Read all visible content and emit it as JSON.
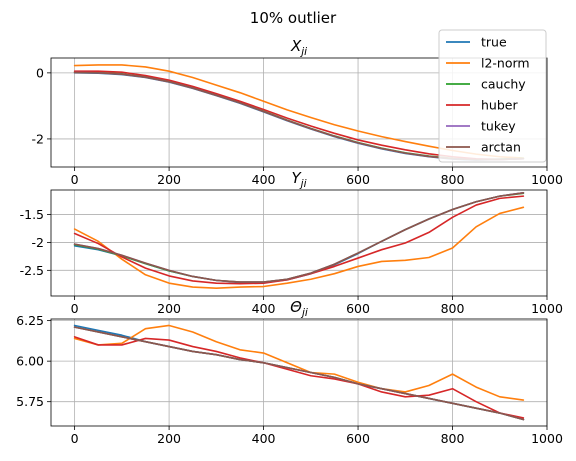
{
  "figure": {
    "suptitle": "10% outlier"
  },
  "legend": {
    "placement": "top-right",
    "entries": [
      {
        "name": "true",
        "color": "#1f77b4"
      },
      {
        "name": "l2-norm",
        "color": "#ff7f0e"
      },
      {
        "name": "cauchy",
        "color": "#2ca02c"
      },
      {
        "name": "huber",
        "color": "#d62728"
      },
      {
        "name": "tukey",
        "color": "#9467bd"
      },
      {
        "name": "arctan",
        "color": "#8c564b"
      }
    ]
  },
  "chart_data": [
    {
      "type": "line",
      "title": "X_ji",
      "title_base": "X",
      "title_sub": "ji",
      "xlim": [
        -50,
        1000
      ],
      "ylim": [
        -2.85,
        0.45
      ],
      "xticks": [
        0,
        200,
        400,
        600,
        800,
        1000
      ],
      "yticks": [
        0,
        -2
      ],
      "grid": true,
      "x": [
        0,
        50,
        100,
        150,
        200,
        250,
        300,
        350,
        400,
        450,
        500,
        550,
        600,
        650,
        700,
        750,
        800,
        850,
        900,
        950
      ],
      "series": [
        {
          "name": "true",
          "color": "#1f77b4",
          "values": [
            0.0,
            -0.01,
            -0.05,
            -0.14,
            -0.28,
            -0.47,
            -0.69,
            -0.92,
            -1.18,
            -1.45,
            -1.7,
            -1.93,
            -2.13,
            -2.3,
            -2.44,
            -2.54,
            -2.61,
            -2.64,
            -2.62,
            -2.6
          ]
        },
        {
          "name": "l2-norm",
          "color": "#ff7f0e",
          "values": [
            0.22,
            0.24,
            0.24,
            0.18,
            0.05,
            -0.14,
            -0.37,
            -0.6,
            -0.86,
            -1.12,
            -1.35,
            -1.57,
            -1.76,
            -1.93,
            -2.08,
            -2.22,
            -2.35,
            -2.46,
            -2.54,
            -2.58
          ]
        },
        {
          "name": "cauchy",
          "color": "#2ca02c",
          "values": [
            0.02,
            0.01,
            -0.03,
            -0.12,
            -0.26,
            -0.45,
            -0.67,
            -0.9,
            -1.16,
            -1.43,
            -1.68,
            -1.91,
            -2.11,
            -2.28,
            -2.42,
            -2.52,
            -2.59,
            -2.62,
            -2.61,
            -2.59
          ]
        },
        {
          "name": "huber",
          "color": "#d62728",
          "values": [
            0.05,
            0.05,
            0.02,
            -0.08,
            -0.22,
            -0.41,
            -0.63,
            -0.86,
            -1.11,
            -1.37,
            -1.61,
            -1.83,
            -2.03,
            -2.19,
            -2.33,
            -2.45,
            -2.54,
            -2.6,
            -2.62,
            -2.6
          ]
        },
        {
          "name": "tukey",
          "color": "#9467bd",
          "values": [
            0.01,
            0.0,
            -0.04,
            -0.13,
            -0.27,
            -0.46,
            -0.68,
            -0.91,
            -1.17,
            -1.44,
            -1.69,
            -1.92,
            -2.12,
            -2.29,
            -2.43,
            -2.53,
            -2.6,
            -2.63,
            -2.62,
            -2.6
          ]
        },
        {
          "name": "arctan",
          "color": "#8c564b",
          "values": [
            0.01,
            0.0,
            -0.04,
            -0.13,
            -0.27,
            -0.46,
            -0.68,
            -0.91,
            -1.17,
            -1.44,
            -1.69,
            -1.92,
            -2.12,
            -2.29,
            -2.43,
            -2.53,
            -2.6,
            -2.63,
            -2.62,
            -2.6
          ]
        }
      ]
    },
    {
      "type": "line",
      "title": "Y_ji",
      "title_base": "Y",
      "title_sub": "ji",
      "xlim": [
        -50,
        1000
      ],
      "ylim": [
        -2.96,
        -1.06
      ],
      "xticks": [
        0,
        200,
        400,
        600,
        800,
        1000
      ],
      "yticks": [
        -1.5,
        -2.0,
        -2.5
      ],
      "grid": true,
      "x": [
        0,
        50,
        100,
        150,
        200,
        250,
        300,
        350,
        400,
        450,
        500,
        550,
        600,
        650,
        700,
        750,
        800,
        850,
        900,
        950
      ],
      "series": [
        {
          "name": "true",
          "color": "#1f77b4",
          "values": [
            -2.06,
            -2.13,
            -2.24,
            -2.38,
            -2.51,
            -2.61,
            -2.68,
            -2.72,
            -2.72,
            -2.67,
            -2.56,
            -2.4,
            -2.2,
            -1.98,
            -1.77,
            -1.58,
            -1.41,
            -1.27,
            -1.17,
            -1.11
          ]
        },
        {
          "name": "l2-norm",
          "color": "#ff7f0e",
          "values": [
            -1.76,
            -1.98,
            -2.3,
            -2.58,
            -2.73,
            -2.8,
            -2.82,
            -2.8,
            -2.79,
            -2.73,
            -2.66,
            -2.56,
            -2.43,
            -2.34,
            -2.32,
            -2.27,
            -2.1,
            -1.72,
            -1.48,
            -1.37
          ]
        },
        {
          "name": "cauchy",
          "color": "#2ca02c",
          "values": [
            -2.04,
            -2.12,
            -2.24,
            -2.38,
            -2.51,
            -2.61,
            -2.68,
            -2.71,
            -2.71,
            -2.66,
            -2.55,
            -2.39,
            -2.19,
            -1.98,
            -1.77,
            -1.58,
            -1.41,
            -1.27,
            -1.17,
            -1.12
          ]
        },
        {
          "name": "huber",
          "color": "#d62728",
          "values": [
            -1.84,
            -2.02,
            -2.26,
            -2.46,
            -2.6,
            -2.69,
            -2.73,
            -2.74,
            -2.73,
            -2.67,
            -2.56,
            -2.43,
            -2.28,
            -2.13,
            -2.01,
            -1.82,
            -1.55,
            -1.33,
            -1.21,
            -1.17
          ]
        },
        {
          "name": "tukey",
          "color": "#9467bd",
          "values": [
            -2.03,
            -2.11,
            -2.23,
            -2.37,
            -2.5,
            -2.61,
            -2.68,
            -2.71,
            -2.71,
            -2.66,
            -2.55,
            -2.39,
            -2.19,
            -1.98,
            -1.77,
            -1.58,
            -1.41,
            -1.27,
            -1.17,
            -1.11
          ]
        },
        {
          "name": "arctan",
          "color": "#8c564b",
          "values": [
            -2.03,
            -2.11,
            -2.23,
            -2.37,
            -2.5,
            -2.61,
            -2.68,
            -2.71,
            -2.71,
            -2.66,
            -2.55,
            -2.39,
            -2.19,
            -1.98,
            -1.77,
            -1.58,
            -1.41,
            -1.27,
            -1.17,
            -1.11
          ]
        }
      ]
    },
    {
      "type": "line",
      "title": "Θ_ji",
      "title_base": "Θ",
      "title_sub": "ji",
      "xlim": [
        -50,
        1000
      ],
      "ylim": [
        5.6,
        6.26
      ],
      "xticks": [
        0,
        200,
        400,
        600,
        800,
        1000
      ],
      "yticks": [
        6.25,
        6.0,
        5.75
      ],
      "ytick_labels": [
        "6.25",
        "6.00",
        "5.75"
      ],
      "grid": true,
      "x": [
        0,
        50,
        100,
        150,
        200,
        250,
        300,
        350,
        400,
        450,
        500,
        550,
        600,
        650,
        700,
        750,
        800,
        850,
        900,
        950
      ],
      "series": [
        {
          "name": "true",
          "color": "#1f77b4",
          "values": [
            6.22,
            6.19,
            6.16,
            6.12,
            6.09,
            6.06,
            6.04,
            6.01,
            5.99,
            5.96,
            5.93,
            5.9,
            5.86,
            5.83,
            5.8,
            5.77,
            5.74,
            5.71,
            5.68,
            5.64
          ]
        },
        {
          "name": "l2-norm",
          "color": "#ff7f0e",
          "values": [
            6.14,
            6.1,
            6.11,
            6.2,
            6.22,
            6.18,
            6.12,
            6.07,
            6.05,
            5.99,
            5.93,
            5.92,
            5.87,
            5.83,
            5.81,
            5.85,
            5.92,
            5.84,
            5.78,
            5.76
          ]
        },
        {
          "name": "cauchy",
          "color": "#2ca02c",
          "values": [
            6.21,
            6.18,
            6.15,
            6.12,
            6.09,
            6.06,
            6.04,
            6.01,
            5.99,
            5.96,
            5.93,
            5.9,
            5.86,
            5.83,
            5.8,
            5.77,
            5.74,
            5.71,
            5.68,
            5.64
          ]
        },
        {
          "name": "huber",
          "color": "#d62728",
          "values": [
            6.15,
            6.1,
            6.1,
            6.14,
            6.13,
            6.09,
            6.06,
            6.02,
            5.99,
            5.95,
            5.91,
            5.89,
            5.86,
            5.81,
            5.78,
            5.79,
            5.83,
            5.75,
            5.68,
            5.65
          ]
        },
        {
          "name": "tukey",
          "color": "#9467bd",
          "values": [
            6.21,
            6.18,
            6.15,
            6.12,
            6.09,
            6.06,
            6.04,
            6.01,
            5.99,
            5.96,
            5.93,
            5.9,
            5.86,
            5.83,
            5.8,
            5.77,
            5.74,
            5.71,
            5.68,
            5.64
          ]
        },
        {
          "name": "arctan",
          "color": "#8c564b",
          "values": [
            6.21,
            6.18,
            6.15,
            6.12,
            6.09,
            6.06,
            6.04,
            6.01,
            5.99,
            5.96,
            5.93,
            5.9,
            5.86,
            5.83,
            5.8,
            5.77,
            5.74,
            5.71,
            5.68,
            5.64
          ]
        }
      ]
    }
  ]
}
